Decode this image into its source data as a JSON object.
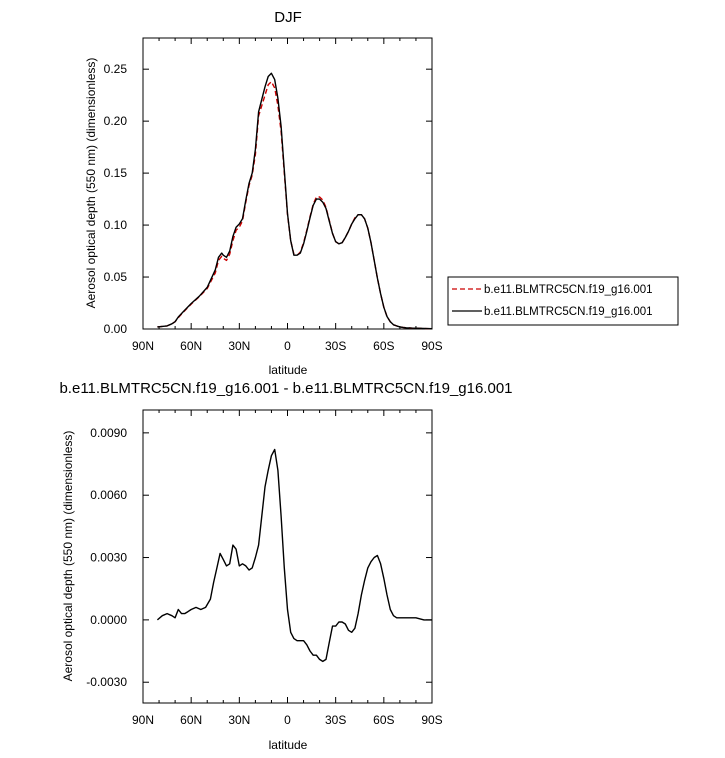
{
  "chart_data": [
    {
      "type": "line",
      "title": "DJF",
      "xlabel": "latitude",
      "ylabel": "Aerosol optical depth (550 nm) (dimensionless)",
      "xlim": [
        -90,
        90
      ],
      "ylim": [
        0,
        0.28
      ],
      "xticks": [
        -90,
        -60,
        -30,
        0,
        30,
        60,
        90
      ],
      "xtick_labels": [
        "90N",
        "60N",
        "30N",
        "0",
        "30S",
        "60S",
        "90S"
      ],
      "yticks": [
        0.0,
        0.05,
        0.1,
        0.15,
        0.2,
        0.25
      ],
      "ytick_labels": [
        "0.00",
        "0.05",
        "0.10",
        "0.15",
        "0.20",
        "0.25"
      ],
      "legend_position": "right",
      "series": [
        {
          "name": "b.e11.BLMTRC5CN.f19_g16.001",
          "color": "#cc0000",
          "style": "dashed",
          "x": [
            -81,
            -75,
            -72,
            -70,
            -68,
            -65,
            -60,
            -55,
            -50,
            -45,
            -43,
            -41,
            -40,
            -38,
            -36,
            -34,
            -32,
            -30,
            -28,
            -26,
            -24,
            -22,
            -20,
            -18,
            -16,
            -14,
            -12,
            -10,
            -8,
            -6,
            -4,
            -2,
            0,
            2,
            4,
            6,
            8,
            10,
            12,
            14,
            16,
            18,
            20,
            22,
            24,
            26,
            28,
            30,
            32,
            34,
            36,
            38,
            40,
            42,
            44,
            46,
            48,
            50,
            52,
            54,
            56,
            58,
            60,
            62,
            64,
            66,
            68,
            70,
            72,
            74,
            76,
            78,
            80,
            85,
            90
          ],
          "values": [
            0.002,
            0.003,
            0.005,
            0.007,
            0.011,
            0.016,
            0.024,
            0.031,
            0.039,
            0.054,
            0.066,
            0.07,
            0.068,
            0.066,
            0.072,
            0.085,
            0.095,
            0.098,
            0.104,
            0.122,
            0.138,
            0.148,
            0.168,
            0.205,
            0.215,
            0.225,
            0.235,
            0.238,
            0.232,
            0.215,
            0.19,
            0.15,
            0.11,
            0.085,
            0.072,
            0.071,
            0.074,
            0.083,
            0.095,
            0.108,
            0.12,
            0.127,
            0.127,
            0.124,
            0.117,
            0.105,
            0.092,
            0.084,
            0.082,
            0.083,
            0.088,
            0.094,
            0.101,
            0.107,
            0.11,
            0.11,
            0.106,
            0.097,
            0.083,
            0.066,
            0.049,
            0.034,
            0.021,
            0.012,
            0.007,
            0.004,
            0.003,
            0.002,
            0.0015,
            0.0012,
            0.001,
            0.0008,
            0.0008,
            0.0005,
            0.0003
          ]
        },
        {
          "name": "b.e11.BLMTRC5CN.f19_g16.001",
          "color": "#000000",
          "style": "solid",
          "x": [
            -81,
            -75,
            -72,
            -70,
            -68,
            -65,
            -60,
            -55,
            -50,
            -45,
            -43,
            -41,
            -40,
            -38,
            -36,
            -34,
            -32,
            -30,
            -28,
            -26,
            -24,
            -22,
            -20,
            -18,
            -16,
            -14,
            -12,
            -10,
            -8,
            -6,
            -4,
            -2,
            0,
            2,
            4,
            6,
            8,
            10,
            12,
            14,
            16,
            18,
            20,
            22,
            24,
            26,
            28,
            30,
            32,
            34,
            36,
            38,
            40,
            42,
            44,
            46,
            48,
            50,
            52,
            54,
            56,
            58,
            60,
            62,
            64,
            66,
            68,
            70,
            72,
            74,
            76,
            78,
            80,
            85,
            90
          ],
          "values": [
            0.002,
            0.003,
            0.005,
            0.007,
            0.0115,
            0.0165,
            0.0245,
            0.0315,
            0.04,
            0.057,
            0.069,
            0.073,
            0.071,
            0.069,
            0.075,
            0.089,
            0.098,
            0.101,
            0.106,
            0.124,
            0.14,
            0.15,
            0.173,
            0.209,
            0.221,
            0.233,
            0.243,
            0.246,
            0.24,
            0.222,
            0.195,
            0.153,
            0.111,
            0.085,
            0.071,
            0.071,
            0.073,
            0.082,
            0.094,
            0.107,
            0.119,
            0.125,
            0.125,
            0.122,
            0.116,
            0.104,
            0.092,
            0.084,
            0.082,
            0.083,
            0.088,
            0.094,
            0.101,
            0.106,
            0.11,
            0.11,
            0.106,
            0.097,
            0.083,
            0.066,
            0.049,
            0.034,
            0.021,
            0.012,
            0.007,
            0.004,
            0.003,
            0.002,
            0.0015,
            0.0012,
            0.001,
            0.0008,
            0.0008,
            0.0005,
            0.0003
          ]
        }
      ]
    },
    {
      "type": "line",
      "title": "b.e11.BLMTRC5CN.f19_g16.001 - b.e11.BLMTRC5CN.f19_g16.001",
      "xlabel": "latitude",
      "ylabel": "Aerosol optical depth (550 nm) (dimensionless)",
      "xlim": [
        -90,
        90
      ],
      "ylim": [
        -0.004,
        0.0101
      ],
      "xticks": [
        -90,
        -60,
        -30,
        0,
        30,
        60,
        90
      ],
      "xtick_labels": [
        "90N",
        "60N",
        "30N",
        "0",
        "30S",
        "60S",
        "90S"
      ],
      "yticks": [
        -0.003,
        0.0,
        0.003,
        0.006,
        0.009
      ],
      "ytick_labels": [
        "-0.0030",
        "0.0000",
        "0.0030",
        "0.0060",
        "0.0090"
      ],
      "series": [
        {
          "color": "#000000",
          "style": "solid",
          "x": [
            -81,
            -78,
            -75,
            -72,
            -70,
            -68,
            -66,
            -64,
            -62,
            -60,
            -57,
            -54,
            -51,
            -48,
            -46,
            -44,
            -42,
            -40,
            -38,
            -36,
            -34,
            -32,
            -30,
            -28,
            -26,
            -24,
            -22,
            -20,
            -18,
            -16,
            -14,
            -12,
            -10,
            -8,
            -6,
            -4,
            -2,
            0,
            2,
            4,
            6,
            8,
            10,
            12,
            14,
            16,
            18,
            20,
            22,
            24,
            26,
            28,
            30,
            32,
            34,
            36,
            38,
            40,
            42,
            44,
            46,
            48,
            50,
            52,
            54,
            56,
            58,
            60,
            62,
            64,
            66,
            68,
            70,
            75,
            80,
            85,
            90
          ],
          "values": [
            0.0,
            0.0002,
            0.0003,
            0.0002,
            0.0001,
            0.0005,
            0.0003,
            0.0003,
            0.0004,
            0.0005,
            0.0006,
            0.0005,
            0.0006,
            0.001,
            0.0018,
            0.0025,
            0.0032,
            0.0029,
            0.0026,
            0.0027,
            0.0036,
            0.0034,
            0.0026,
            0.0027,
            0.0026,
            0.0024,
            0.0025,
            0.003,
            0.0036,
            0.005,
            0.0064,
            0.0072,
            0.0079,
            0.0082,
            0.0072,
            0.005,
            0.0025,
            0.0005,
            -0.0006,
            -0.0009,
            -0.001,
            -0.001,
            -0.001,
            -0.0012,
            -0.0015,
            -0.0017,
            -0.0017,
            -0.0019,
            -0.002,
            -0.0019,
            -0.0011,
            -0.0003,
            -0.0003,
            -0.0001,
            -0.0001,
            -0.0002,
            -0.0005,
            -0.0006,
            -0.0004,
            0.0003,
            0.0012,
            0.0019,
            0.0025,
            0.0028,
            0.003,
            0.0031,
            0.0027,
            0.002,
            0.0012,
            0.0005,
            0.0002,
            0.0001,
            0.0001,
            0.0001,
            0.0001,
            0.0,
            0.0
          ]
        }
      ]
    }
  ]
}
